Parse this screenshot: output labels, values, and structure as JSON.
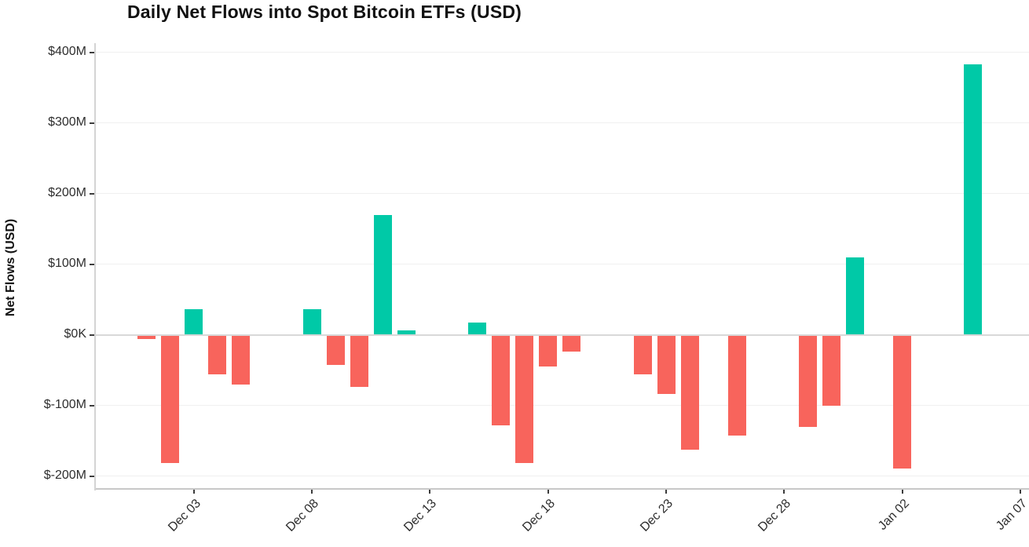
{
  "chart": {
    "title": "Daily Net Flows into Spot Bitcoin ETFs (USD)",
    "y_axis_title": "Net Flows (USD)"
  },
  "chart_data": {
    "type": "bar",
    "title": "Daily Net Flows into Spot Bitcoin ETFs (USD)",
    "xlabel": "",
    "ylabel": "Net Flows (USD)",
    "unit": "USD millions",
    "grid": "horizontal",
    "legend": "none",
    "ylim": [
      -218,
      413
    ],
    "categories": [
      "Dec 01",
      "Dec 02",
      "Dec 03",
      "Dec 04",
      "Dec 05",
      "Dec 08",
      "Dec 09",
      "Dec 10",
      "Dec 11",
      "Dec 12",
      "Dec 15",
      "Dec 16",
      "Dec 17",
      "Dec 18",
      "Dec 19",
      "Dec 22",
      "Dec 23",
      "Dec 24",
      "Dec 26",
      "Dec 29",
      "Dec 30",
      "Dec 31",
      "Jan 02",
      "Jan 05"
    ],
    "values": [
      -6,
      -181,
      37,
      -56,
      -70,
      36,
      -42,
      -74,
      170,
      7,
      18,
      -128,
      -181,
      -45,
      -24,
      -56,
      -84,
      -163,
      -143,
      -130,
      -100,
      110,
      -189,
      383
    ],
    "x_tick_labels": [
      "Dec 03",
      "Dec 08",
      "Dec 13",
      "Dec 18",
      "Dec 23",
      "Dec 28",
      "Jan 02",
      "Jan 07"
    ],
    "y_ticks": [
      {
        "label": "$400M",
        "value": 400
      },
      {
        "label": "$300M",
        "value": 300
      },
      {
        "label": "$200M",
        "value": 200
      },
      {
        "label": "$100M",
        "value": 100
      },
      {
        "label": "$0K",
        "value": 0
      },
      {
        "label": "$-100M",
        "value": -100
      },
      {
        "label": "$-200M",
        "value": -200
      }
    ],
    "positive_color": "#00C9A7",
    "negative_color": "#F8645C"
  }
}
